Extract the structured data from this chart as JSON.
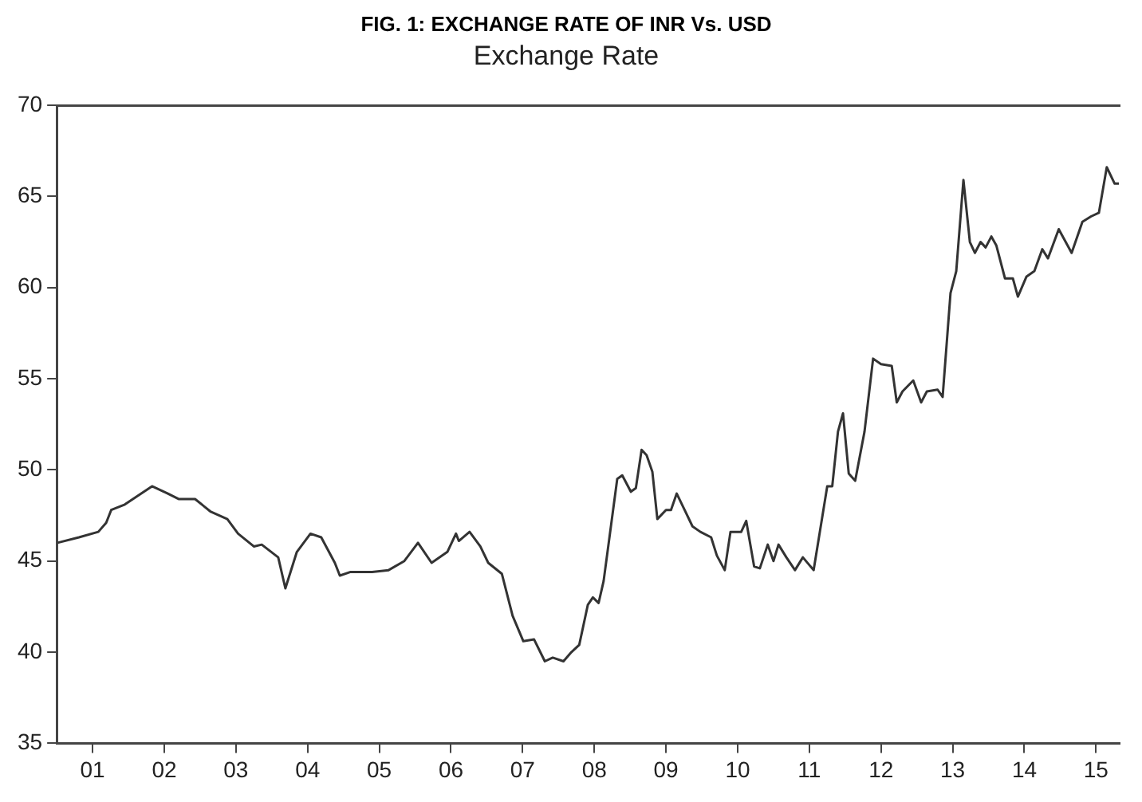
{
  "chart_data": {
    "type": "line",
    "title": "FIG. 1: EXCHANGE RATE OF INR Vs. USD",
    "subtitle": "Exchange Rate",
    "x": [
      2000.51,
      2000.81,
      2001.08,
      2001.19,
      2001.26,
      2001.45,
      2001.6,
      2001.83,
      2002.05,
      2002.2,
      2002.43,
      2002.65,
      2002.88,
      2003.03,
      2003.25,
      2003.36,
      2003.59,
      2003.69,
      2003.85,
      2004.04,
      2004.19,
      2004.38,
      2004.45,
      2004.6,
      2004.9,
      2005.13,
      2005.35,
      2005.54,
      2005.73,
      2005.95,
      2006.07,
      2006.11,
      2006.26,
      2006.41,
      2006.52,
      2006.71,
      2006.86,
      2007.01,
      2007.16,
      2007.31,
      2007.42,
      2007.57,
      2007.68,
      2007.79,
      2007.91,
      2007.98,
      2008.06,
      2008.13,
      2008.32,
      2008.39,
      2008.51,
      2008.58,
      2008.66,
      2008.73,
      2008.81,
      2008.88,
      2009.0,
      2009.07,
      2009.15,
      2009.26,
      2009.37,
      2009.48,
      2009.63,
      2009.71,
      2009.82,
      2009.9,
      2010.05,
      2010.12,
      2010.23,
      2010.31,
      2010.42,
      2010.5,
      2010.57,
      2010.68,
      2010.8,
      2010.91,
      2011.06,
      2011.25,
      2011.32,
      2011.4,
      2011.47,
      2011.55,
      2011.64,
      2011.77,
      2011.89,
      2012.0,
      2012.15,
      2012.22,
      2012.3,
      2012.45,
      2012.56,
      2012.64,
      2012.79,
      2012.86,
      2012.97,
      2013.05,
      2013.15,
      2013.24,
      2013.31,
      2013.39,
      2013.46,
      2013.54,
      2013.61,
      2013.73,
      2013.84,
      2013.91,
      2014.03,
      2014.14,
      2014.25,
      2014.33,
      2014.48,
      2014.66,
      2014.81,
      2014.93,
      2015.04,
      2015.15,
      2015.26,
      2015.32
    ],
    "series": [
      {
        "color": "#333333",
        "values": [
          46.0,
          46.3,
          46.6,
          47.1,
          47.8,
          48.1,
          48.5,
          49.1,
          48.7,
          48.4,
          48.4,
          47.7,
          47.3,
          46.5,
          45.8,
          45.9,
          45.2,
          43.5,
          45.5,
          46.5,
          46.3,
          44.9,
          44.2,
          44.4,
          44.4,
          44.5,
          45.0,
          46.0,
          44.9,
          45.5,
          46.5,
          46.1,
          46.6,
          45.8,
          44.9,
          44.3,
          42.0,
          40.6,
          40.7,
          39.5,
          39.7,
          39.5,
          40.0,
          40.4,
          42.6,
          43.0,
          42.7,
          43.9,
          49.5,
          49.7,
          48.8,
          49.0,
          51.1,
          50.8,
          49.9,
          47.3,
          47.8,
          47.8,
          48.7,
          47.8,
          46.9,
          46.6,
          46.3,
          45.3,
          44.5,
          46.6,
          46.6,
          47.2,
          44.7,
          44.6,
          45.9,
          45.0,
          45.9,
          45.2,
          44.5,
          45.2,
          44.5,
          49.1,
          49.1,
          52.1,
          53.1,
          49.8,
          49.4,
          52.1,
          56.1,
          55.8,
          55.7,
          53.7,
          54.3,
          54.9,
          53.7,
          54.3,
          54.4,
          54.0,
          59.7,
          60.9,
          65.9,
          62.5,
          61.9,
          62.5,
          62.2,
          62.8,
          62.3,
          60.5,
          60.5,
          59.5,
          60.6,
          60.9,
          62.1,
          61.6,
          63.2,
          61.9,
          63.6,
          63.9,
          64.1,
          66.6,
          65.7,
          65.7
        ]
      }
    ],
    "xlim": [
      2000.5,
      2015.33
    ],
    "xticks": [
      {
        "value": 2001,
        "label": "01"
      },
      {
        "value": 2002,
        "label": "02"
      },
      {
        "value": 2003,
        "label": "03"
      },
      {
        "value": 2004,
        "label": "04"
      },
      {
        "value": 2005,
        "label": "05"
      },
      {
        "value": 2006,
        "label": "06"
      },
      {
        "value": 2007,
        "label": "07"
      },
      {
        "value": 2008,
        "label": "08"
      },
      {
        "value": 2009,
        "label": "09"
      },
      {
        "value": 2010,
        "label": "10"
      },
      {
        "value": 2011,
        "label": "11"
      },
      {
        "value": 2012,
        "label": "12"
      },
      {
        "value": 2013,
        "label": "13"
      },
      {
        "value": 2014,
        "label": "14"
      },
      {
        "value": 2015,
        "label": "15"
      }
    ],
    "ylim": [
      35,
      70
    ],
    "yticks": [
      35,
      40,
      45,
      50,
      55,
      60,
      65,
      70
    ],
    "grid": false,
    "legend": false,
    "marker": "none",
    "line_style": "solid"
  }
}
